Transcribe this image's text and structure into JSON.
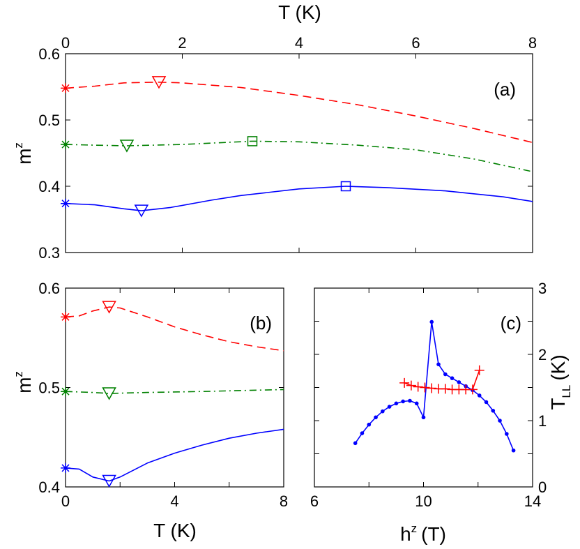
{
  "chart_data": [
    {
      "type": "line",
      "panel_label": "(a)",
      "xlabel": "T (K)",
      "ylabel": "m",
      "ylabel_sup": "z",
      "xlim": [
        0,
        8
      ],
      "ylim": [
        0.3,
        0.6
      ],
      "xticks": [
        "0",
        "2",
        "4",
        "6",
        "8"
      ],
      "yticks": [
        "0.3",
        "0.4",
        "0.5",
        "0.6"
      ],
      "colors": {
        "red": "#ff0000",
        "green": "#008000",
        "blue": "#0000ff"
      },
      "series": [
        {
          "color": "red",
          "style": "dashed",
          "x": [
            0,
            0.5,
            1.0,
            1.6,
            2.0,
            3.0,
            4.0,
            5.0,
            6.0,
            7.0,
            8.0
          ],
          "y": [
            0.548,
            0.551,
            0.556,
            0.557,
            0.556,
            0.549,
            0.537,
            0.523,
            0.506,
            0.487,
            0.466
          ],
          "markers": [
            {
              "symbol": "asterisk",
              "x": 0,
              "y": 0.548
            },
            {
              "symbol": "triangle-down",
              "x": 1.6,
              "y": 0.557
            }
          ]
        },
        {
          "color": "green",
          "style": "dashdot",
          "x": [
            0,
            0.5,
            1.05,
            2.0,
            3.2,
            4.0,
            5.0,
            6.0,
            7.0,
            8.0
          ],
          "y": [
            0.463,
            0.462,
            0.461,
            0.463,
            0.468,
            0.467,
            0.462,
            0.455,
            0.441,
            0.422
          ],
          "markers": [
            {
              "symbol": "asterisk",
              "x": 0,
              "y": 0.463
            },
            {
              "symbol": "triangle-down",
              "x": 1.05,
              "y": 0.461
            },
            {
              "symbol": "square",
              "x": 3.2,
              "y": 0.468
            }
          ]
        },
        {
          "color": "blue",
          "style": "solid",
          "x": [
            0,
            0.5,
            1.0,
            1.3,
            1.8,
            2.5,
            3.0,
            4.0,
            4.8,
            5.5,
            6.5,
            7.5,
            8.0
          ],
          "y": [
            0.374,
            0.372,
            0.366,
            0.363,
            0.368,
            0.379,
            0.386,
            0.396,
            0.4,
            0.398,
            0.393,
            0.384,
            0.377
          ],
          "markers": [
            {
              "symbol": "asterisk",
              "x": 0,
              "y": 0.374
            },
            {
              "symbol": "triangle-down",
              "x": 1.3,
              "y": 0.363
            },
            {
              "symbol": "square",
              "x": 4.8,
              "y": 0.4
            }
          ]
        }
      ]
    },
    {
      "type": "line",
      "panel_label": "(b)",
      "xlabel": "T (K)",
      "ylabel": "m",
      "ylabel_sup": "z",
      "xlim": [
        0,
        8
      ],
      "ylim": [
        0.4,
        0.6
      ],
      "xticks": [
        "0",
        "4",
        "8"
      ],
      "yticks": [
        "0.4",
        "0.5",
        "0.6"
      ],
      "series": [
        {
          "color": "red",
          "style": "dashed",
          "x": [
            0,
            0.5,
            1.0,
            1.6,
            2.0,
            3.0,
            4.0,
            5.0,
            6.0,
            7.0,
            8.0
          ],
          "y": [
            0.571,
            0.572,
            0.577,
            0.581,
            0.58,
            0.571,
            0.561,
            0.553,
            0.546,
            0.541,
            0.537
          ],
          "markers": [
            {
              "symbol": "asterisk",
              "x": 0,
              "y": 0.571
            },
            {
              "symbol": "triangle-down",
              "x": 1.6,
              "y": 0.581
            }
          ]
        },
        {
          "color": "green",
          "style": "dashdot",
          "x": [
            0,
            1.0,
            1.6,
            3.0,
            5.0,
            8.0
          ],
          "y": [
            0.496,
            0.495,
            0.494,
            0.495,
            0.496,
            0.498
          ],
          "markers": [
            {
              "symbol": "asterisk",
              "x": 0,
              "y": 0.496
            },
            {
              "symbol": "triangle-down",
              "x": 1.6,
              "y": 0.494
            }
          ]
        },
        {
          "color": "blue",
          "style": "solid",
          "x": [
            0,
            0.5,
            1.0,
            1.6,
            2.0,
            3.0,
            4.0,
            5.0,
            6.0,
            7.0,
            8.0
          ],
          "y": [
            0.419,
            0.418,
            0.41,
            0.406,
            0.41,
            0.424,
            0.434,
            0.442,
            0.449,
            0.454,
            0.458
          ],
          "markers": [
            {
              "symbol": "asterisk",
              "x": 0,
              "y": 0.419
            },
            {
              "symbol": "triangle-down",
              "x": 1.6,
              "y": 0.406
            }
          ]
        }
      ]
    },
    {
      "type": "line",
      "panel_label": "(c)",
      "xlabel": "h",
      "xlabel_sup": "z",
      "xlabel_unit": "(T)",
      "ylabel": "T",
      "ylabel_sub": "LL",
      "ylabel_unit": "(K)",
      "xlim": [
        6,
        14
      ],
      "ylim": [
        0,
        3
      ],
      "xticks": [
        "6",
        "10",
        "14"
      ],
      "yticks": [
        "0",
        "1",
        "2",
        "3"
      ],
      "series": [
        {
          "color": "blue",
          "style": "solid",
          "marker": "dot",
          "x": [
            7.5,
            7.75,
            8.0,
            8.25,
            8.5,
            8.75,
            9.0,
            9.25,
            9.5,
            9.75,
            10.0,
            10.3,
            10.55,
            10.8,
            11.05,
            11.3,
            11.55,
            11.8,
            12.05,
            12.3,
            12.55,
            12.8,
            13.05,
            13.3
          ],
          "y": [
            0.66,
            0.81,
            0.94,
            1.05,
            1.14,
            1.21,
            1.26,
            1.29,
            1.3,
            1.26,
            1.05,
            2.49,
            1.85,
            1.7,
            1.64,
            1.58,
            1.52,
            1.46,
            1.38,
            1.28,
            1.15,
            1.0,
            0.8,
            0.55
          ]
        },
        {
          "color": "red",
          "style": "solid",
          "marker": "plus",
          "x": [
            9.3,
            9.55,
            9.8,
            10.05,
            10.3,
            10.55,
            10.8,
            11.05,
            11.3,
            11.55,
            11.8,
            12.05
          ],
          "y": [
            1.57,
            1.53,
            1.51,
            1.5,
            1.49,
            1.48,
            1.48,
            1.47,
            1.47,
            1.47,
            1.47,
            1.76
          ]
        }
      ]
    }
  ]
}
